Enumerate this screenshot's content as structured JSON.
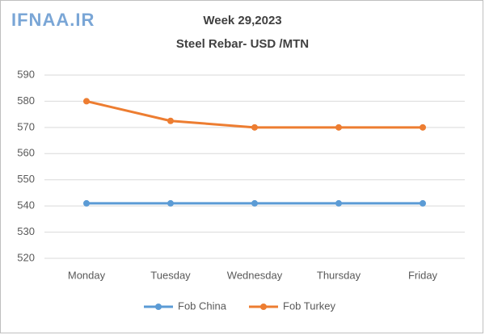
{
  "chart_data": {
    "type": "line",
    "watermark": "IFNAA.IR",
    "title": "Week 29,2023",
    "subtitle": "Steel Rebar- USD /MTN",
    "categories": [
      "Monday",
      "Tuesday",
      "Wednesday",
      "Thursday",
      "Friday"
    ],
    "series": [
      {
        "name": "Fob China",
        "color": "#5b9bd5",
        "values": [
          541,
          541,
          541,
          541,
          541
        ]
      },
      {
        "name": "Fob Turkey",
        "color": "#ed7d31",
        "values": [
          580,
          572.5,
          570,
          570,
          570
        ]
      }
    ],
    "ylim": [
      520,
      590
    ],
    "yticks": [
      520,
      530,
      540,
      550,
      560,
      570,
      580,
      590
    ],
    "grid": true,
    "legend": "bottom"
  }
}
